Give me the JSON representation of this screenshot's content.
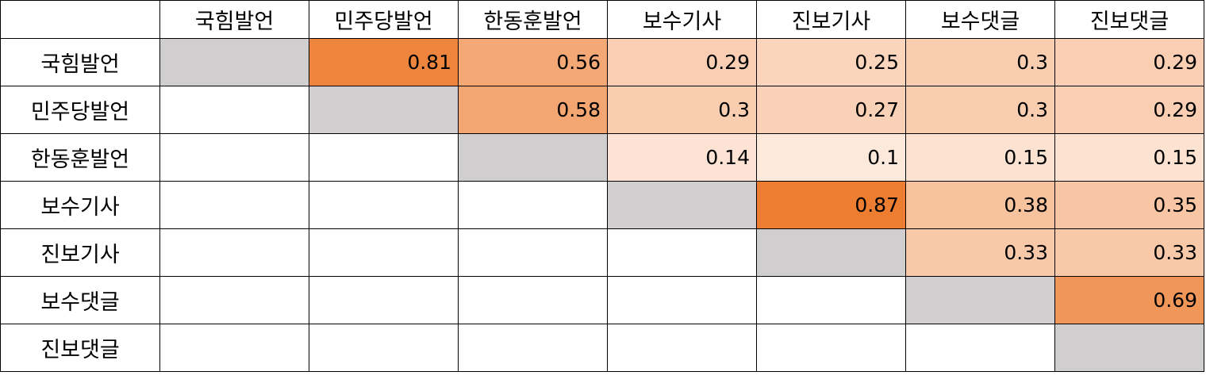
{
  "chart_data": {
    "type": "heatmap",
    "columns": [
      "국힘발언",
      "민주당발언",
      "한동훈발언",
      "보수기사",
      "진보기사",
      "보수댓글",
      "진보댓글"
    ],
    "rows": [
      "국힘발언",
      "민주당발언",
      "한동훈발언",
      "보수기사",
      "진보기사",
      "보수댓글",
      "진보댓글"
    ],
    "values": [
      [
        null,
        0.81,
        0.56,
        0.29,
        0.25,
        0.3,
        0.29
      ],
      [
        null,
        null,
        0.58,
        0.3,
        0.27,
        0.3,
        0.29
      ],
      [
        null,
        null,
        null,
        0.14,
        0.1,
        0.15,
        0.15
      ],
      [
        null,
        null,
        null,
        null,
        0.87,
        0.38,
        0.35
      ],
      [
        null,
        null,
        null,
        null,
        null,
        0.33,
        0.33
      ],
      [
        null,
        null,
        null,
        null,
        null,
        null,
        0.69
      ],
      [
        null,
        null,
        null,
        null,
        null,
        null,
        null
      ]
    ],
    "display_values": [
      [
        "",
        "0.81",
        "0.56",
        "0.29",
        "0.25",
        "0.3",
        "0.29"
      ],
      [
        "",
        "",
        "0.58",
        "0.3",
        "0.27",
        "0.3",
        "0.29"
      ],
      [
        "",
        "",
        "",
        "0.14",
        "0.1",
        "0.15",
        "0.15"
      ],
      [
        "",
        "",
        "",
        "",
        "0.87",
        "0.38",
        "0.35"
      ],
      [
        "",
        "",
        "",
        "",
        "",
        "0.33",
        "0.33"
      ],
      [
        "",
        "",
        "",
        "",
        "",
        "",
        "0.69"
      ],
      [
        "",
        "",
        "",
        "",
        "",
        "",
        ""
      ]
    ],
    "colors": {
      "scale_low": "#fde9dc",
      "scale_high": "#ed7d31",
      "diagonal": "#d0cece",
      "empty": "#ffffff",
      "border": "#000000",
      "text": "#000000"
    },
    "value_range": [
      0.1,
      0.87
    ],
    "layout": "upper-triangle"
  }
}
